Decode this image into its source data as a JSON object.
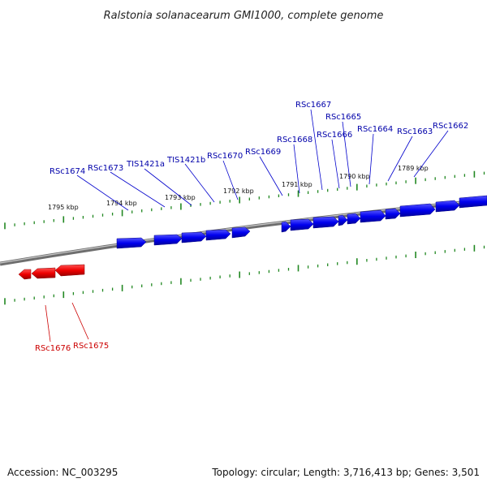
{
  "title": "Ralstonia solanacearum GMI1000, complete genome",
  "footer": {
    "accession": "Accession: NC_003295",
    "stats": "Topology: circular; Length: 3,716,413 bp; Genes: 3,501"
  },
  "colors": {
    "forward_gene": "#0000ee",
    "reverse_gene": "#ee0000",
    "tick": "#228822",
    "backbone": "#888888"
  },
  "kbp_labels": [
    "1795 kbp",
    "1794 kbp",
    "1793 kbp",
    "1792 kbp",
    "1791 kbp",
    "1790 kbp",
    "1789 kbp"
  ],
  "forward_labels": [
    "RSc1674",
    "RSc1673",
    "TIS1421a",
    "TIS1421b",
    "RSc1670",
    "RSc1669",
    "RSc1668",
    "RSc1667",
    "RSc1666",
    "RSc1665",
    "RSc1664",
    "RSc1663",
    "RSc1662"
  ],
  "reverse_labels": [
    "RSc1676",
    "RSc1675"
  ]
}
